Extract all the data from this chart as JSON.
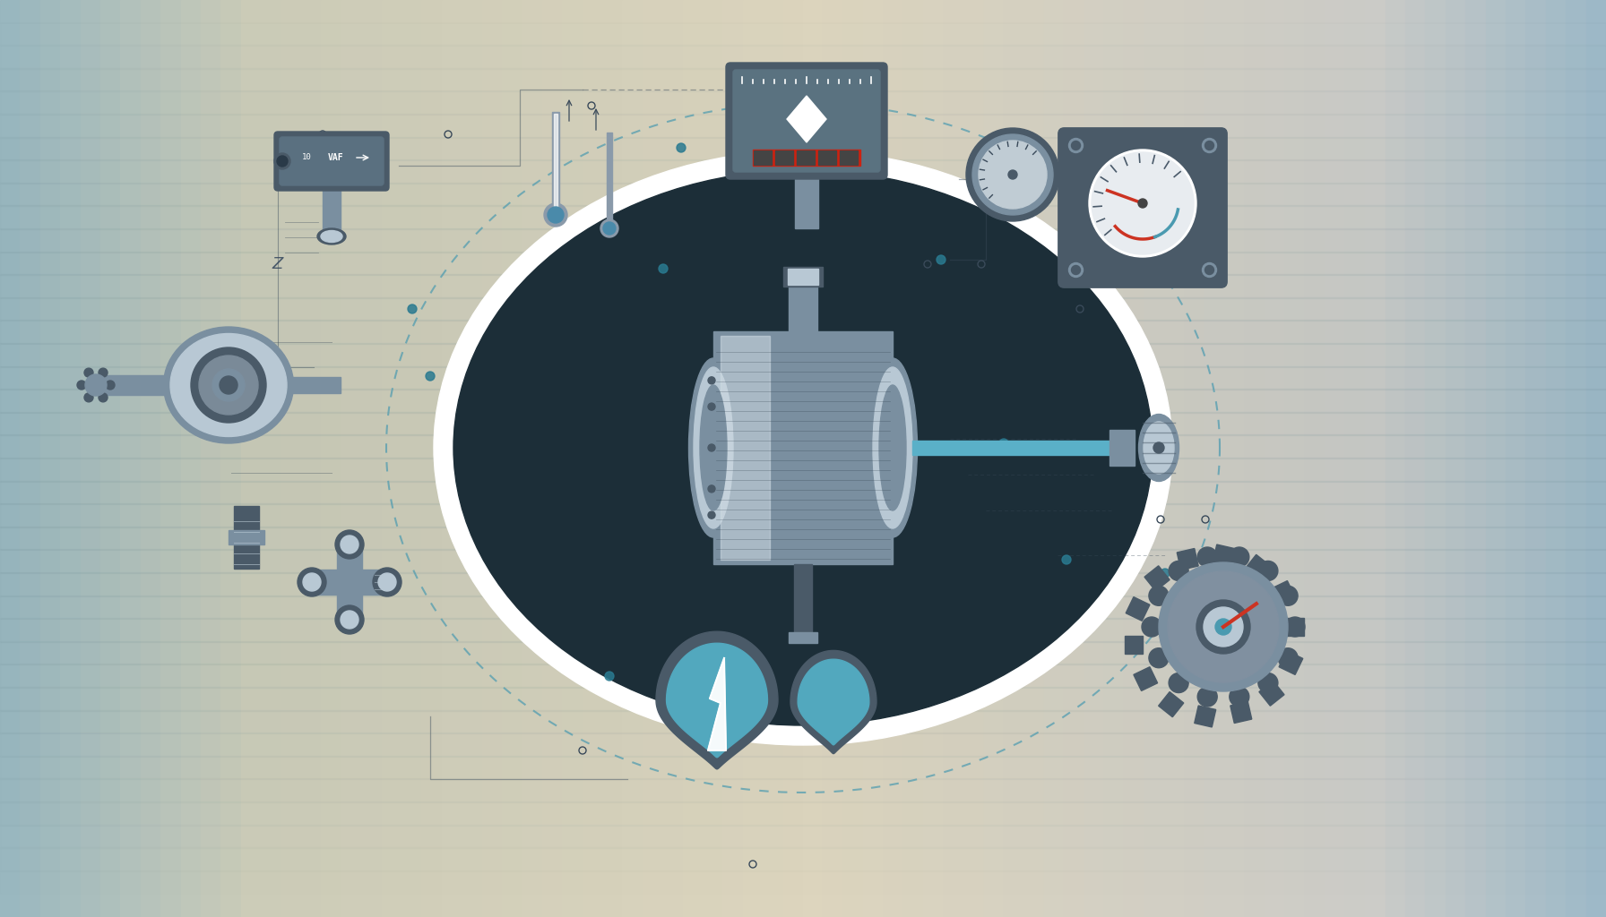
{
  "bg_left": "#9ab8c0",
  "bg_center": "#ddd5be",
  "bg_right": "#b8c8cc",
  "dark_ellipse": "#1c2e38",
  "white_ring": "#f5f2ee",
  "metal_dark": "#4a5a68",
  "metal_mid": "#7a8fa0",
  "metal_light": "#b8c8d4",
  "metal_highlight": "#d0dce4",
  "teal_blue": "#4a9ab0",
  "teal_light": "#5ab0c8",
  "red_accent": "#cc3322",
  "line_dark": "#3a4a5a",
  "dot_teal": "#2a7a90",
  "cream": "#e0d8c5",
  "gauge_bg": "#e8ecf0",
  "gauge_face": "#c8d4d8",
  "thermometer_stem": "#8a9aaa",
  "valve_body": "#6a8090"
}
